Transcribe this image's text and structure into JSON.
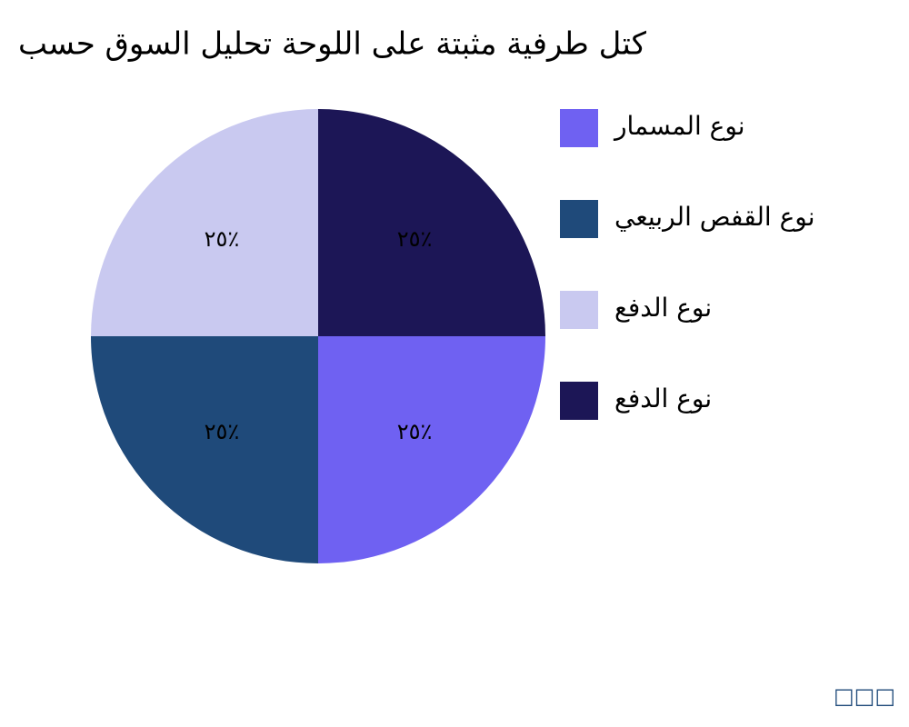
{
  "chart_data": {
    "type": "pie",
    "title": "كتل طرفية مثبتة على اللوحة تحليل السوق حسب",
    "categories": [
      "نوع المسمار",
      "نوع القفص الربيعي",
      "نوع الدفع",
      "نوع الدفع"
    ],
    "values": [
      25,
      25,
      25,
      25
    ],
    "value_labels": [
      "٢٥٪",
      "٢٥٪",
      "٢٥٪",
      "٢٥٪"
    ],
    "colors": [
      "#6f61f2",
      "#1f4a7a",
      "#c9c9f0",
      "#1c1656"
    ],
    "footer": "□□□"
  }
}
